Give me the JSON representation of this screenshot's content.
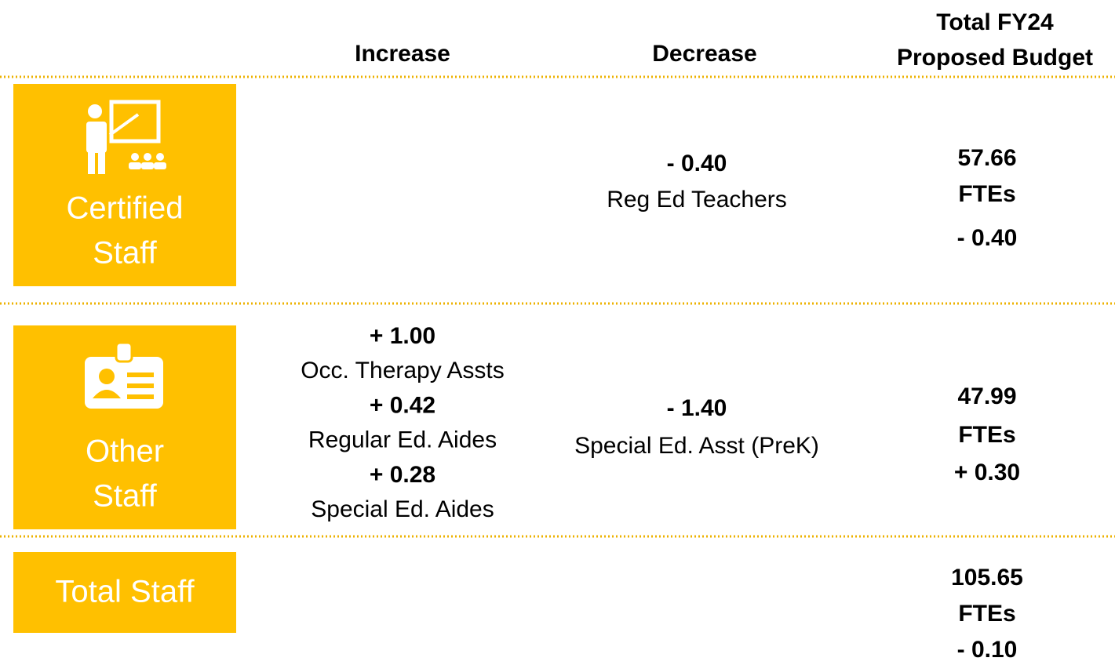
{
  "header": {
    "increase": "Increase",
    "decrease": "Decrease",
    "total": [
      "Total FY24",
      "Proposed Budget"
    ]
  },
  "rows": [
    {
      "label": [
        "Certified",
        "Staff"
      ],
      "decrease": [
        {
          "change": "- 0.40",
          "name": "Reg Ed Teachers"
        }
      ],
      "total": {
        "value": "57.66",
        "unit": "FTEs",
        "change": "- 0.40"
      }
    },
    {
      "label": [
        "Other",
        "Staff"
      ],
      "increase": [
        {
          "change": "+ 1.00",
          "name": "Occ. Therapy Assts"
        },
        {
          "change": "+ 0.42",
          "name": "Regular Ed. Aides"
        },
        {
          "change": "+ 0.28",
          "name": "Special Ed. Aides"
        }
      ],
      "decrease": [
        {
          "change": "- 1.40",
          "name": "Special Ed. Asst (PreK)"
        }
      ],
      "total": {
        "value": "47.99",
        "unit": "FTEs",
        "change": "+ 0.30"
      }
    },
    {
      "label": [
        "Total Staff"
      ],
      "total": {
        "value": "105.65",
        "unit": "FTEs",
        "change": "- 0.10"
      }
    }
  ]
}
